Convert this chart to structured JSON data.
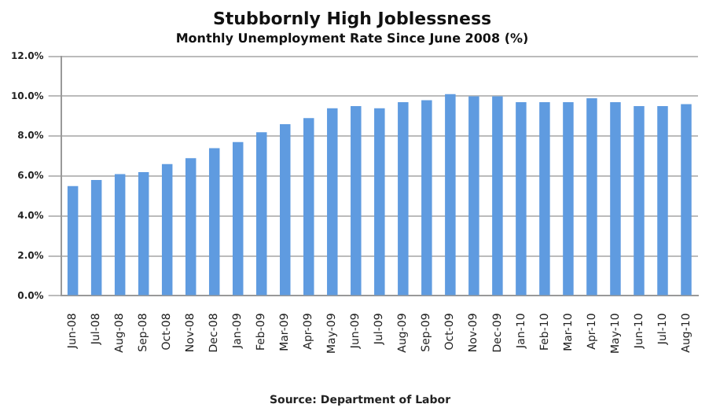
{
  "chart_data": {
    "type": "bar",
    "title": "Stubbornly High Joblessness",
    "subtitle": "Monthly Unemployment Rate Since June 2008 (%)",
    "categories": [
      "Jun-08",
      "Jul-08",
      "Aug-08",
      "Sep-08",
      "Oct-08",
      "Nov-08",
      "Dec-08",
      "Jan-09",
      "Feb-09",
      "Mar-09",
      "Apr-09",
      "May-09",
      "Jun-09",
      "Jul-09",
      "Aug-09",
      "Sep-09",
      "Oct-09",
      "Nov-09",
      "Dec-09",
      "Jan-10",
      "Feb-10",
      "Mar-10",
      "Apr-10",
      "May-10",
      "Jun-10",
      "Jul-10",
      "Aug-10"
    ],
    "values": [
      5.5,
      5.8,
      6.1,
      6.2,
      6.6,
      6.9,
      7.4,
      7.7,
      8.2,
      8.6,
      8.9,
      9.4,
      9.5,
      9.4,
      9.7,
      9.8,
      10.1,
      10.0,
      10.0,
      9.7,
      9.7,
      9.7,
      9.9,
      9.7,
      9.5,
      9.5,
      9.6
    ],
    "color": "#5f9be0",
    "ylim": [
      0,
      12
    ],
    "yticks": [
      {
        "value": 0,
        "label": "0.0%"
      },
      {
        "value": 2,
        "label": "2.0%"
      },
      {
        "value": 4,
        "label": "4.0%"
      },
      {
        "value": 6,
        "label": "6.0%"
      },
      {
        "value": 8,
        "label": "8.0%"
      },
      {
        "value": 10,
        "label": "10.0%"
      },
      {
        "value": 12,
        "label": "12.0%"
      }
    ],
    "grid": "y",
    "annotations": [
      "Source: Department of Labor"
    ]
  }
}
